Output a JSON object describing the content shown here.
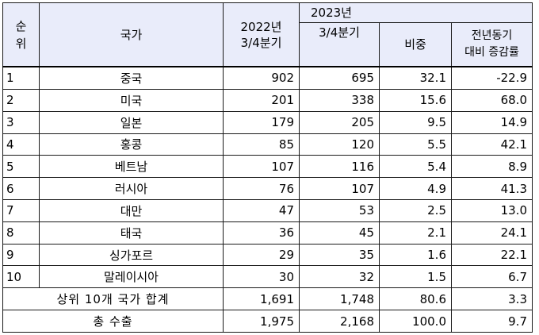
{
  "header": {
    "rank_line1": "순",
    "rank_line2": "위",
    "country": "국가",
    "y2022_line1": "2022년",
    "y2022_line2": "3/4분기",
    "y2023_line1": "2023년",
    "y2023_line2": "3/4분기",
    "share": "비중",
    "yoy_line1": "전년동기",
    "yoy_line2": "대비 증감률"
  },
  "rows": [
    {
      "rank": "1",
      "country": "중국",
      "y2022": "902",
      "y2023": "695",
      "share": "32.1",
      "yoy": "-22.9"
    },
    {
      "rank": "2",
      "country": "미국",
      "y2022": "201",
      "y2023": "338",
      "share": "15.6",
      "yoy": "68.0"
    },
    {
      "rank": "3",
      "country": "일본",
      "y2022": "179",
      "y2023": "205",
      "share": "9.5",
      "yoy": "14.9"
    },
    {
      "rank": "4",
      "country": "홍콩",
      "y2022": "85",
      "y2023": "120",
      "share": "5.5",
      "yoy": "42.1"
    },
    {
      "rank": "5",
      "country": "베트남",
      "y2022": "107",
      "y2023": "116",
      "share": "5.4",
      "yoy": "8.9"
    },
    {
      "rank": "6",
      "country": "러시아",
      "y2022": "76",
      "y2023": "107",
      "share": "4.9",
      "yoy": "41.3"
    },
    {
      "rank": "7",
      "country": "대만",
      "y2022": "47",
      "y2023": "53",
      "share": "2.5",
      "yoy": "13.0"
    },
    {
      "rank": "8",
      "country": "태국",
      "y2022": "36",
      "y2023": "45",
      "share": "2.1",
      "yoy": "24.1"
    },
    {
      "rank": "9",
      "country": "싱가포르",
      "y2022": "29",
      "y2023": "35",
      "share": "1.6",
      "yoy": "22.1"
    },
    {
      "rank": "10",
      "country": "말레이시아",
      "y2022": "30",
      "y2023": "32",
      "share": "1.5",
      "yoy": "6.7"
    }
  ],
  "subtotal": {
    "label": "상위 10개 국가 합계",
    "y2022": "1,691",
    "y2023": "1,748",
    "share": "80.6",
    "yoy": "3.3"
  },
  "total": {
    "label": "총 수출",
    "y2022": "1,975",
    "y2023": "2,168",
    "share": "100.0",
    "yoy": "9.7"
  },
  "colors": {
    "header_bg": "#e9ecfa",
    "border": "#1a1a1a"
  }
}
